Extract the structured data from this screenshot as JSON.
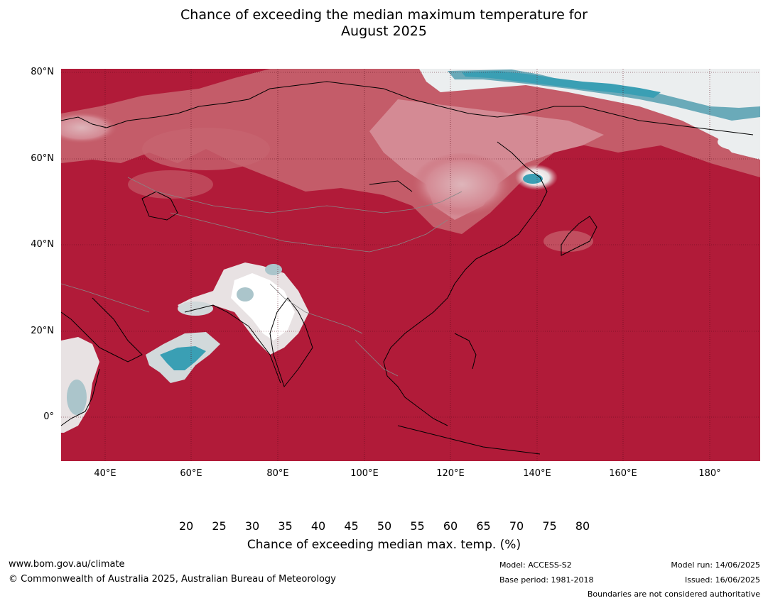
{
  "title": {
    "line1": "Chance of exceeding the median maximum temperature for",
    "line2": "August 2025"
  },
  "map": {
    "lat_labels": [
      "80°N",
      "60°N",
      "40°N",
      "20°N",
      "0°"
    ],
    "lon_labels": [
      "40°E",
      "60°E",
      "80°E",
      "100°E",
      "120°E",
      "140°E",
      "160°E",
      "180°"
    ],
    "background_color": "#b11b39"
  },
  "colorbar": {
    "ticks": [
      "20",
      "25",
      "30",
      "35",
      "40",
      "45",
      "50",
      "55",
      "60",
      "65",
      "70",
      "75",
      "80"
    ],
    "colors": [
      "#3a9fb4",
      "#6aaab9",
      "#8cb5c3",
      "#abc5cb",
      "#d2d9db",
      "#ebeeef",
      "#ffffff",
      "#ffffff",
      "#e8e2e3",
      "#deb5ba",
      "#d48a94",
      "#c7646f",
      "#bd3e4d",
      "#b11b39"
    ],
    "label": "Chance of exceeding median max. temp. (%)"
  },
  "footer": {
    "website": "www.bom.gov.au/climate",
    "copyright": "© Commonwealth of Australia 2025, Australian Bureau of Meteorology",
    "model": "Model: ACCESS-S2",
    "base_period": "Base period: 1981-2018",
    "model_run": "Model run: 14/06/2025",
    "issued": "Issued: 16/06/2025",
    "disclaimer": "Boundaries are not considered authoritative"
  }
}
